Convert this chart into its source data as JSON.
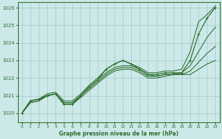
{
  "title": "Graphe pression niveau de la mer (hPa)",
  "background_color": "#cce8e8",
  "grid_color": "#aacccc",
  "line_color": "#2d6e2d",
  "xlim": [
    -0.5,
    23.5
  ],
  "ylim": [
    1019.5,
    1026.3
  ],
  "yticks": [
    1020,
    1021,
    1022,
    1023,
    1024,
    1025,
    1026
  ],
  "xticks": [
    0,
    1,
    2,
    3,
    4,
    5,
    6,
    7,
    8,
    9,
    10,
    11,
    12,
    13,
    14,
    15,
    16,
    17,
    18,
    19,
    20,
    21,
    22,
    23
  ],
  "series": [
    {
      "x": [
        0,
        1,
        2,
        3,
        4,
        5,
        6,
        7,
        8,
        9,
        10,
        11,
        12,
        13,
        14,
        15,
        16,
        17,
        18,
        19,
        20,
        21,
        22,
        23
      ],
      "y": [
        1020.0,
        1020.7,
        1020.8,
        1021.0,
        1021.1,
        1020.5,
        1020.5,
        1021.0,
        1021.5,
        1021.9,
        1022.5,
        1022.8,
        1023.0,
        1022.8,
        1022.5,
        1022.2,
        1022.2,
        1022.3,
        1022.3,
        1022.3,
        1023.0,
        1024.5,
        1025.4,
        1026.0
      ],
      "marker": true,
      "lw": 0.9
    },
    {
      "x": [
        0,
        1,
        2,
        3,
        4,
        5,
        6,
        7,
        8,
        9,
        10,
        11,
        12,
        13,
        14,
        15,
        16,
        17,
        18,
        19,
        20,
        21,
        22,
        23
      ],
      "y": [
        1020.0,
        1020.6,
        1020.7,
        1021.0,
        1021.1,
        1020.5,
        1020.5,
        1020.9,
        1021.3,
        1021.7,
        1022.1,
        1022.4,
        1022.5,
        1022.5,
        1022.3,
        1022.0,
        1022.0,
        1022.1,
        1022.2,
        1022.2,
        1022.2,
        1022.5,
        1022.8,
        1023.0
      ],
      "marker": false,
      "lw": 0.8
    },
    {
      "x": [
        0,
        1,
        2,
        3,
        4,
        5,
        6,
        7,
        8,
        9,
        10,
        11,
        12,
        13,
        14,
        15,
        16,
        17,
        18,
        19,
        20,
        21,
        22,
        23
      ],
      "y": [
        1020.0,
        1020.6,
        1020.7,
        1021.0,
        1021.1,
        1020.6,
        1020.6,
        1021.0,
        1021.4,
        1021.8,
        1022.2,
        1022.5,
        1022.6,
        1022.6,
        1022.4,
        1022.1,
        1022.1,
        1022.2,
        1022.2,
        1022.2,
        1022.4,
        1022.9,
        1023.4,
        1023.8
      ],
      "marker": false,
      "lw": 0.8
    },
    {
      "x": [
        0,
        1,
        2,
        3,
        4,
        5,
        6,
        7,
        8,
        9,
        10,
        11,
        12,
        13,
        14,
        15,
        16,
        17,
        18,
        19,
        20,
        21,
        22,
        23
      ],
      "y": [
        1020.0,
        1020.7,
        1020.8,
        1021.0,
        1021.1,
        1020.6,
        1020.6,
        1021.0,
        1021.5,
        1021.9,
        1022.3,
        1022.6,
        1022.7,
        1022.7,
        1022.5,
        1022.2,
        1022.1,
        1022.2,
        1022.2,
        1022.3,
        1022.7,
        1023.5,
        1024.3,
        1024.9
      ],
      "marker": false,
      "lw": 0.8
    },
    {
      "x": [
        0,
        1,
        2,
        3,
        4,
        5,
        6,
        7,
        8,
        9,
        10,
        11,
        12,
        13,
        14,
        15,
        16,
        17,
        18,
        19,
        20,
        21,
        22,
        23
      ],
      "y": [
        1020.0,
        1020.7,
        1020.8,
        1021.1,
        1021.2,
        1020.7,
        1020.7,
        1021.1,
        1021.6,
        1022.0,
        1022.5,
        1022.8,
        1023.0,
        1022.8,
        1022.6,
        1022.3,
        1022.3,
        1022.4,
        1022.4,
        1022.5,
        1023.5,
        1025.2,
        1025.6,
        1026.1
      ],
      "marker": false,
      "lw": 0.8
    }
  ]
}
